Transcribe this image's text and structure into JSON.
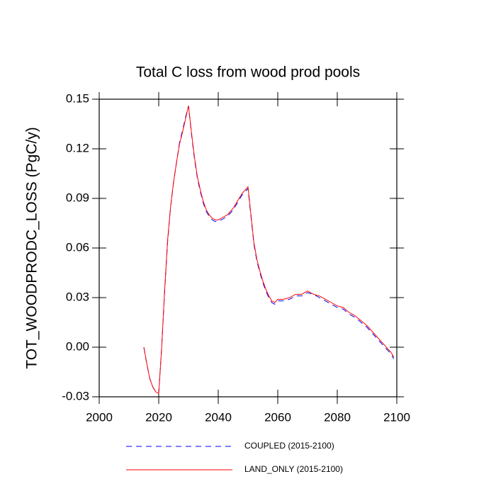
{
  "chart_data": {
    "type": "line",
    "title": "Total C loss from wood prod pools",
    "y_label": "TOT_WOODPRODC_LOSS  (PgC/y)",
    "xlim": [
      2000,
      2100
    ],
    "xticks": [
      2000,
      2020,
      2040,
      2060,
      2080,
      2100
    ],
    "ylim": [
      -0.03,
      0.15
    ],
    "yticks": [
      -0.03,
      {
        "value": 0,
        "label": "0.00"
      },
      0.03,
      0.06,
      0.09,
      0.12,
      0.15
    ],
    "x": [
      2015,
      2016,
      2017,
      2018,
      2019,
      2020,
      2021,
      2022,
      2023,
      2024,
      2025,
      2026,
      2027,
      2028,
      2029,
      2030,
      2031,
      2032,
      2033,
      2034,
      2035,
      2036,
      2037,
      2038,
      2039,
      2040,
      2041,
      2042,
      2043,
      2044,
      2045,
      2046,
      2047,
      2048,
      2049,
      2050,
      2051,
      2052,
      2053,
      2054,
      2055,
      2056,
      2057,
      2058,
      2059,
      2060,
      2062,
      2064,
      2066,
      2068,
      2070,
      2072,
      2074,
      2076,
      2078,
      2080,
      2082,
      2084,
      2086,
      2088,
      2090,
      2092,
      2094,
      2096,
      2098,
      2099
    ],
    "series": [
      {
        "name": "COUPLED (2015-2100)",
        "color": "#0000ff",
        "dash": true,
        "values": [
          0.0,
          -0.01,
          -0.019,
          -0.024,
          -0.027,
          -0.028,
          0.0,
          0.034,
          0.064,
          0.085,
          0.1,
          0.112,
          0.124,
          0.131,
          0.139,
          0.146,
          0.129,
          0.114,
          0.102,
          0.094,
          0.087,
          0.082,
          0.079,
          0.077,
          0.076,
          0.076,
          0.077,
          0.078,
          0.079,
          0.081,
          0.083,
          0.086,
          0.089,
          0.092,
          0.094,
          0.096,
          0.079,
          0.062,
          0.052,
          0.045,
          0.039,
          0.034,
          0.03,
          0.027,
          0.026,
          0.028,
          0.028,
          0.029,
          0.031,
          0.031,
          0.033,
          0.032,
          0.03,
          0.028,
          0.026,
          0.024,
          0.023,
          0.02,
          0.018,
          0.015,
          0.012,
          0.008,
          0.004,
          0.0,
          -0.004,
          -0.007
        ]
      },
      {
        "name": "LAND_ONLY (2015-2100)",
        "color": "#ff0000",
        "dash": false,
        "values": [
          0.0,
          -0.01,
          -0.019,
          -0.024,
          -0.027,
          -0.028,
          0.0,
          0.035,
          0.065,
          0.085,
          0.1,
          0.112,
          0.123,
          0.13,
          0.138,
          0.146,
          0.13,
          0.115,
          0.103,
          0.095,
          0.088,
          0.083,
          0.08,
          0.078,
          0.077,
          0.077,
          0.078,
          0.079,
          0.08,
          0.082,
          0.084,
          0.087,
          0.09,
          0.093,
          0.095,
          0.097,
          0.08,
          0.063,
          0.053,
          0.046,
          0.04,
          0.035,
          0.031,
          0.028,
          0.027,
          0.029,
          0.029,
          0.03,
          0.032,
          0.032,
          0.034,
          0.032,
          0.031,
          0.029,
          0.027,
          0.025,
          0.024,
          0.021,
          0.019,
          0.016,
          0.013,
          0.009,
          0.005,
          0.001,
          -0.003,
          -0.006
        ]
      }
    ]
  }
}
